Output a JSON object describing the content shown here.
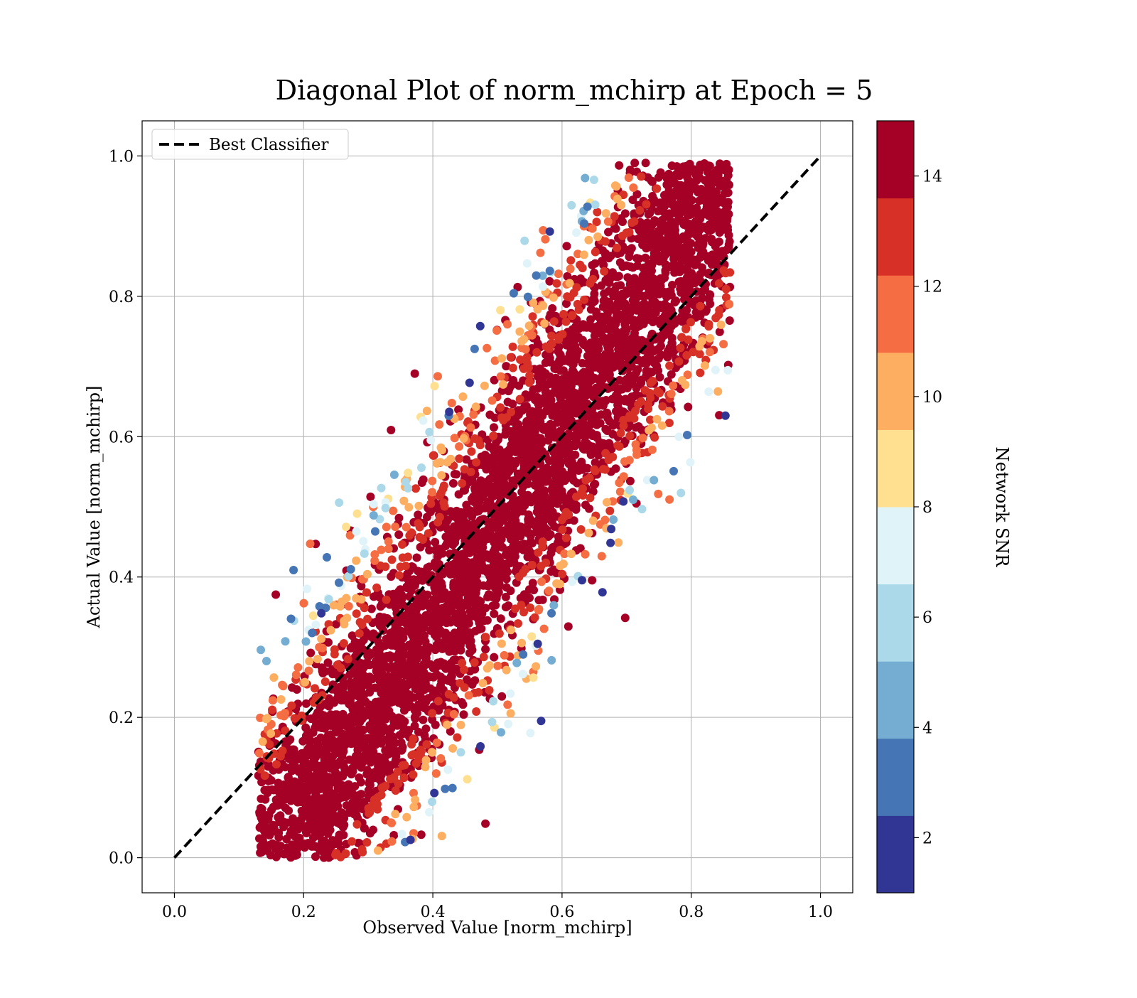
{
  "chart_data": {
    "type": "scatter",
    "title": "Diagonal Plot of norm_mchirp at Epoch = 5",
    "xlabel": "Observed Value [norm_mchirp]",
    "ylabel": "Actual Value [norm_mchirp]",
    "xlim": [
      -0.05,
      1.05
    ],
    "ylim": [
      -0.05,
      1.05
    ],
    "x_ticks": [
      "0.0",
      "0.2",
      "0.4",
      "0.6",
      "0.8",
      "1.0"
    ],
    "y_ticks": [
      "0.0",
      "0.2",
      "0.4",
      "0.6",
      "0.8",
      "1.0"
    ],
    "grid": true,
    "legend": {
      "placement": "upper-left",
      "entries": [
        {
          "label": "Best Classifier",
          "style": "dashed",
          "color": "#000000"
        }
      ]
    },
    "diagonal_line": {
      "name": "Best Classifier",
      "x": [
        0.0,
        1.0
      ],
      "y": [
        0.0,
        1.0
      ]
    },
    "colorbar": {
      "label": "Network SNR",
      "range": [
        1,
        15
      ],
      "ticks": [
        "2",
        "4",
        "6",
        "8",
        "10",
        "12",
        "14"
      ],
      "colors": [
        "#313695",
        "#4575b4",
        "#74add1",
        "#abd9e9",
        "#e0f3f8",
        "#fee090",
        "#fdae61",
        "#f46d43",
        "#d73027",
        "#a50026"
      ]
    },
    "point_cloud": {
      "description_of_density": "band of points around the diagonal, spread about 0.25 either side",
      "x_range": [
        0.13,
        0.86
      ],
      "y_range": [
        0.0,
        0.99
      ],
      "high_snr_color": "#a50026",
      "low_snr_regions": [
        "upper-left edge of band",
        "lower-right edge of band"
      ]
    }
  }
}
